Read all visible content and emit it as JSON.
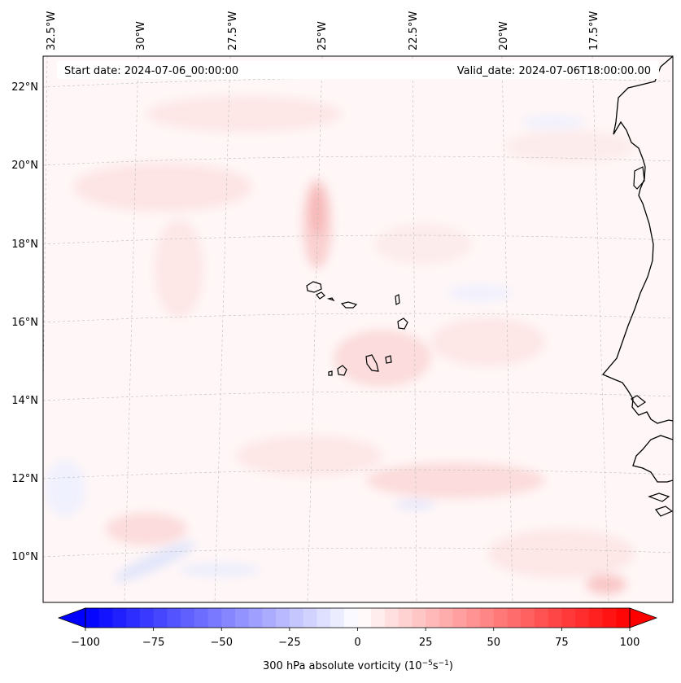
{
  "map": {
    "start_date_text": "Start date: 2024-07-06_00:00:00",
    "valid_date_text": "Valid_date: 2024-07-06T18:00:00.00",
    "lon_labels": [
      "32.5°W",
      "30°W",
      "27.5°W",
      "25°W",
      "22.5°W",
      "20°W",
      "17.5°W"
    ],
    "lat_labels": [
      "22°N",
      "20°N",
      "18°N",
      "16°N",
      "14°N",
      "12°N",
      "10°N"
    ],
    "extent": {
      "lon_min": -33.0,
      "lon_max": -15.0,
      "lat_min": 9.0,
      "lat_max": 22.8
    }
  },
  "colorbar": {
    "label_text": "300 hPa absolute vorticity (10",
    "label_exp1": "−5",
    "label_mid": "s",
    "label_exp2": "−1",
    "label_end": ")",
    "tick_labels": [
      "−100",
      "−75",
      "−50",
      "−25",
      "0",
      "25",
      "50",
      "75",
      "100"
    ],
    "min": -100,
    "max": 100,
    "step": 5,
    "cmap": "bwr"
  },
  "colors": {
    "negative": "#0000ff",
    "positive": "#ff0000",
    "neutral": "#ffffff",
    "coastline": "#000000",
    "grid": "#bbbbbb"
  }
}
